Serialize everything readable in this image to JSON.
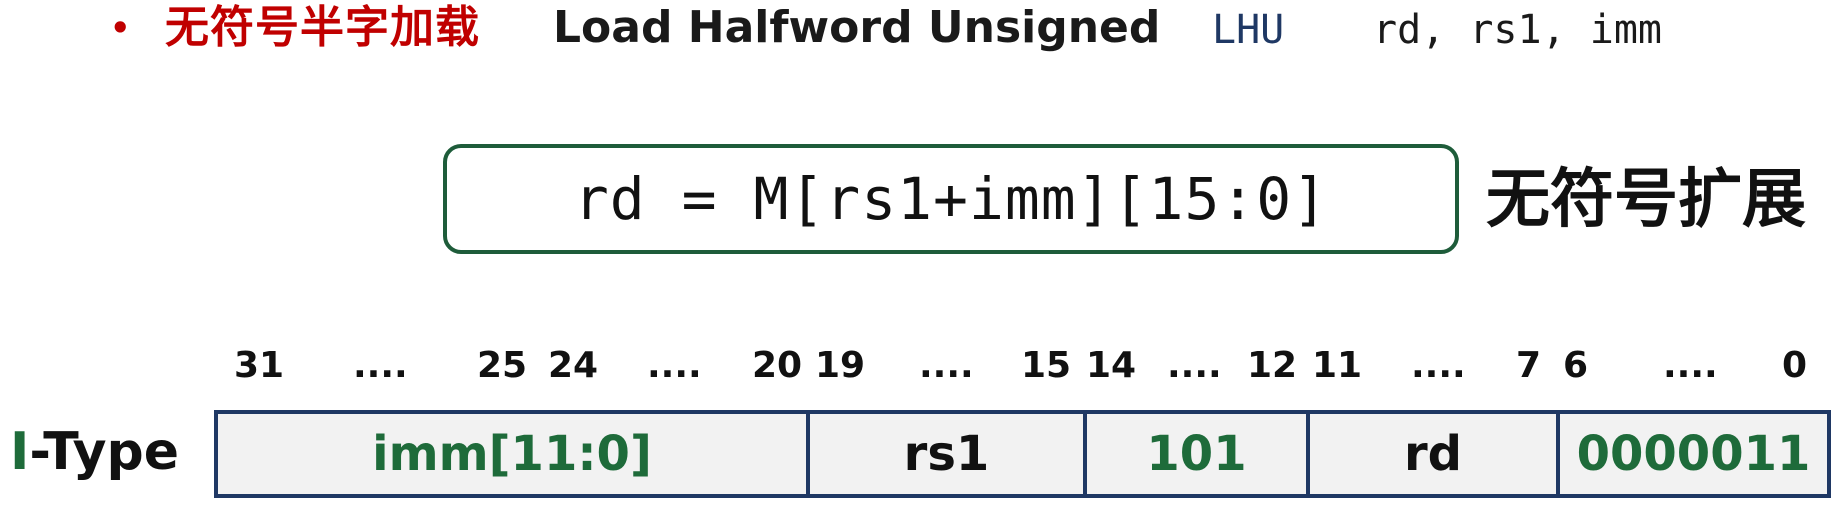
{
  "header": {
    "bullet": "•",
    "title_cn": "无符号半字加载",
    "title_en": "Load Halfword Unsigned",
    "mnemonic": "LHU",
    "operands": "rd, rs1, imm"
  },
  "formula": {
    "expression": "rd = M[rs1+imm][15:0]",
    "note": "无符号扩展"
  },
  "encoding": {
    "type_label_first": "I",
    "type_label_rest": "-Type",
    "bit_labels": [
      "31",
      "....",
      "25",
      "24",
      "....",
      "20",
      "19",
      "....",
      "15",
      "14",
      "....",
      "12",
      "11",
      "....",
      "7",
      "6",
      "....",
      "0"
    ],
    "fields": [
      {
        "name": "imm[11:0]",
        "style": "green"
      },
      {
        "name": "rs1",
        "style": "black"
      },
      {
        "name": "101",
        "style": "green"
      },
      {
        "name": "rd",
        "style": "black"
      },
      {
        "name": "0000011",
        "style": "green"
      }
    ]
  },
  "colors": {
    "title_red": "#c00000",
    "mnemonic_blue": "#1f3864",
    "box_green": "#1e5c3a",
    "field_green": "#1e6b3a",
    "field_border": "#1f3864",
    "field_bg": "#f2f2f2"
  }
}
